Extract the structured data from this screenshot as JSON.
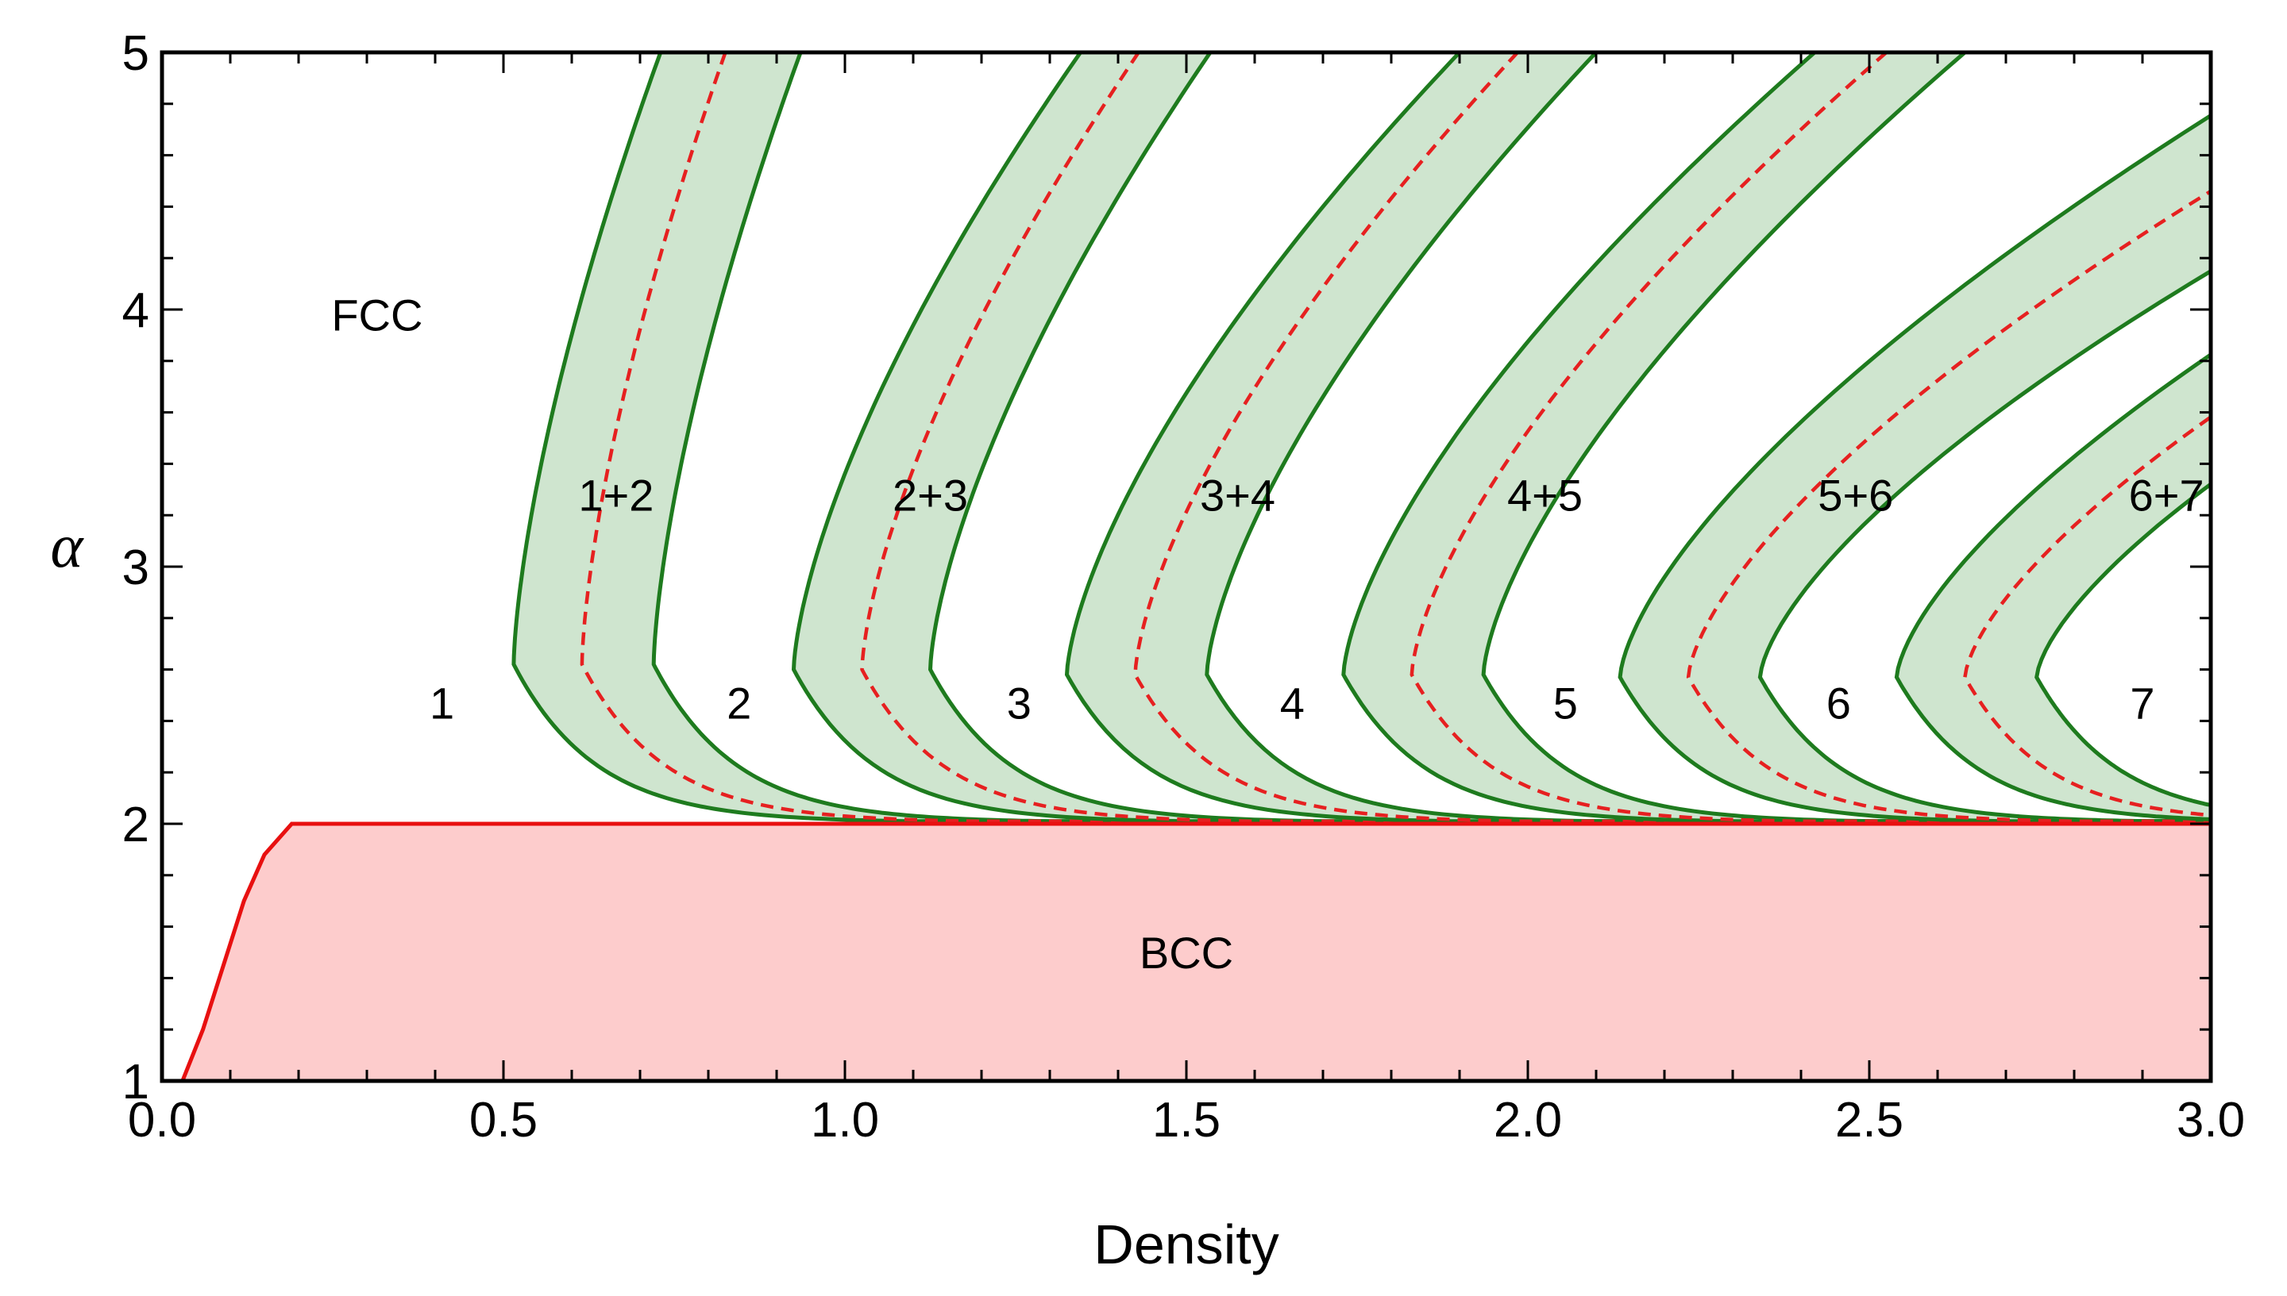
{
  "chart_data": {
    "type": "phase-diagram",
    "title": "",
    "xlabel": "Density",
    "ylabel": "α",
    "xlim": [
      0,
      3
    ],
    "ylim": [
      1,
      5
    ],
    "x_ticks": [
      "0.0",
      "0.5",
      "1.0",
      "1.5",
      "2.0",
      "2.5",
      "3.0"
    ],
    "x_tick_values": [
      0,
      0.5,
      1,
      1.5,
      2,
      2.5,
      3
    ],
    "y_ticks": [
      "1",
      "2",
      "3",
      "4",
      "5"
    ],
    "y_tick_values": [
      1,
      2,
      3,
      4,
      5
    ],
    "colors": {
      "band_fill": "#cfe5cf",
      "band_line": "#1e7b1e",
      "dashed_line": "#e62020",
      "bcc_fill": "#fdcccc",
      "bcc_line": "#e81010"
    },
    "bcc_region": {
      "label": "BCC",
      "label_position": [
        1.5,
        1.5
      ],
      "boundary": [
        [
          0.03,
          1.0
        ],
        [
          0.06,
          1.2
        ],
        [
          0.09,
          1.45
        ],
        [
          0.12,
          1.7
        ],
        [
          0.15,
          1.88
        ],
        [
          0.19,
          2.0
        ],
        [
          3.0,
          2.0
        ]
      ]
    },
    "coexistence_bands": [
      {
        "label": "1+2",
        "label_position": [
          0.665,
          3.28
        ],
        "nose_alpha": 2.62,
        "tip_alpha": 5.0,
        "left_nose": 0.515,
        "dashed_nose": 0.615,
        "right_nose": 0.72,
        "left_top": 0.73,
        "dashed_top": 0.825,
        "right_top": 0.935,
        "left_tail_end": 1.42,
        "right_tail_end": 1.42
      },
      {
        "label": "2+3",
        "label_position": [
          1.125,
          3.28
        ],
        "nose_alpha": 2.6,
        "tip_alpha": 5.0,
        "left_nose": 0.925,
        "dashed_nose": 1.025,
        "right_nose": 1.125,
        "left_top": 1.345,
        "dashed_top": 1.43,
        "right_top": 1.535,
        "left_tail_end": 2.2,
        "right_tail_end": 2.2
      },
      {
        "label": "3+4",
        "label_position": [
          1.575,
          3.28
        ],
        "nose_alpha": 2.58,
        "tip_alpha": 5.0,
        "left_nose": 1.325,
        "dashed_nose": 1.425,
        "right_nose": 1.53,
        "left_top": 1.9,
        "dashed_top": 1.985,
        "right_top": 2.1,
        "left_tail_end": 3.0,
        "right_tail_end": 3.0
      },
      {
        "label": "4+5",
        "label_position": [
          2.025,
          3.28
        ],
        "nose_alpha": 2.58,
        "tip_alpha": 5.0,
        "left_nose": 1.73,
        "dashed_nose": 1.83,
        "right_nose": 1.935,
        "left_top": 2.42,
        "dashed_top": 2.525,
        "right_top": 2.64,
        "left_tail_end": 3.0,
        "right_tail_end": 3.0
      },
      {
        "label": "5+6",
        "label_position": [
          2.48,
          3.28
        ],
        "nose_alpha": 2.57,
        "tip_alpha": 4.75,
        "left_nose": 2.135,
        "dashed_nose": 2.235,
        "right_nose": 2.34,
        "left_top": 3.0,
        "dashed_top": 3.0,
        "right_top": 3.0,
        "left_tail_end": 3.0,
        "right_tail_end": 3.0
      },
      {
        "label": "6+7",
        "label_position": [
          2.935,
          3.28
        ],
        "nose_alpha": 2.57,
        "tip_alpha": 3.7,
        "left_nose": 2.54,
        "dashed_nose": 2.64,
        "right_nose": 2.745,
        "left_top": 3.0,
        "dashed_top": 3.0,
        "right_top": 3.0,
        "left_tail_end": 3.0,
        "right_tail_end": 3.0
      }
    ],
    "phase_labels": [
      {
        "text": "FCC",
        "x": 0.315,
        "y": 3.98
      },
      {
        "text": "1",
        "x": 0.41,
        "y": 2.47
      },
      {
        "text": "2",
        "x": 0.845,
        "y": 2.47
      },
      {
        "text": "3",
        "x": 1.255,
        "y": 2.47
      },
      {
        "text": "4",
        "x": 1.655,
        "y": 2.47
      },
      {
        "text": "5",
        "x": 2.055,
        "y": 2.47
      },
      {
        "text": "6",
        "x": 2.455,
        "y": 2.47
      },
      {
        "text": "7",
        "x": 2.9,
        "y": 2.47
      }
    ]
  }
}
